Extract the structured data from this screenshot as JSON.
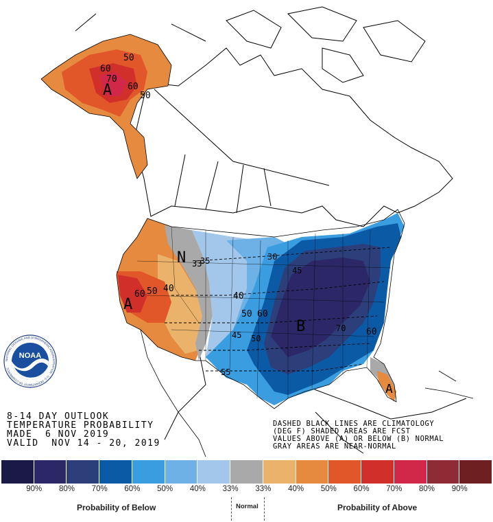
{
  "title": {
    "line1": "8-14 DAY OUTLOOK",
    "line2": "TEMPERATURE PROBABILITY",
    "line3": "MADE  6 NOV 2019",
    "line4": "VALID  NOV 14 - 20, 2019"
  },
  "notes": {
    "line1": "DASHED BLACK LINES ARE CLIMATOLOGY",
    "line2": "(DEG F) SHADED AREAS ARE FCST",
    "line3": "VALUES ABOVE (A) OR BELOW (B) NORMAL",
    "line4": "GRAY AREAS ARE NEAR-NORMAL"
  },
  "map_labels": {
    "alaska_a": "A",
    "alaska_50": "50",
    "alaska_60a": "60",
    "alaska_70": "70",
    "alaska_60b": "60",
    "alaska_50b": "50",
    "west_a": "A",
    "west_60": "60",
    "west_50": "50",
    "west_40": "40",
    "north_n": "N",
    "north_33": "33",
    "north_35": "35",
    "center_40": "40",
    "center_50": "50",
    "center_60": "60",
    "center_45": "45",
    "center_30": "30",
    "east_b": "B",
    "east_50": "50",
    "east_60": "60",
    "east_70": "70",
    "south_55": "55",
    "south_45": "45",
    "florida_a": "A"
  },
  "legend": {
    "swatches": [
      "#1b1a47",
      "#2c2766",
      "#2d3f7b",
      "#0a5aa6",
      "#3a9de0",
      "#6eb1e6",
      "#a3c7ea",
      "#a9a9a9",
      "#eab26a",
      "#e58a3f",
      "#e2572a",
      "#d1302a",
      "#d1284a",
      "#8e2b34",
      "#6e1f22"
    ],
    "labels": [
      "90%",
      "80%",
      "70%",
      "60%",
      "50%",
      "40%",
      "33%",
      "33%",
      "40%",
      "50%",
      "60%",
      "70%",
      "80%",
      "90%"
    ],
    "below_caption": "Probability of Below",
    "normal_caption": "Normal",
    "above_caption": "Probability of Above"
  },
  "logo": {
    "text": "NOAA",
    "ring_text": "NATIONAL OCEANIC AND ATMOSPHERIC ADMINISTRATION · U.S. DEPARTMENT OF COMMERCE"
  },
  "colors": {
    "above_strong": "#d1302a",
    "above_mid": "#e2572a",
    "above_light": "#e58a3f",
    "above_faint": "#eab26a",
    "normal_gray": "#a9a9a9",
    "below_faint": "#a3c7ea",
    "below_light": "#6eb1e6",
    "below_mid": "#3a9de0",
    "below_strong": "#0a5aa6",
    "below_deep": "#2d3f7b",
    "below_darkest": "#2c2766"
  }
}
